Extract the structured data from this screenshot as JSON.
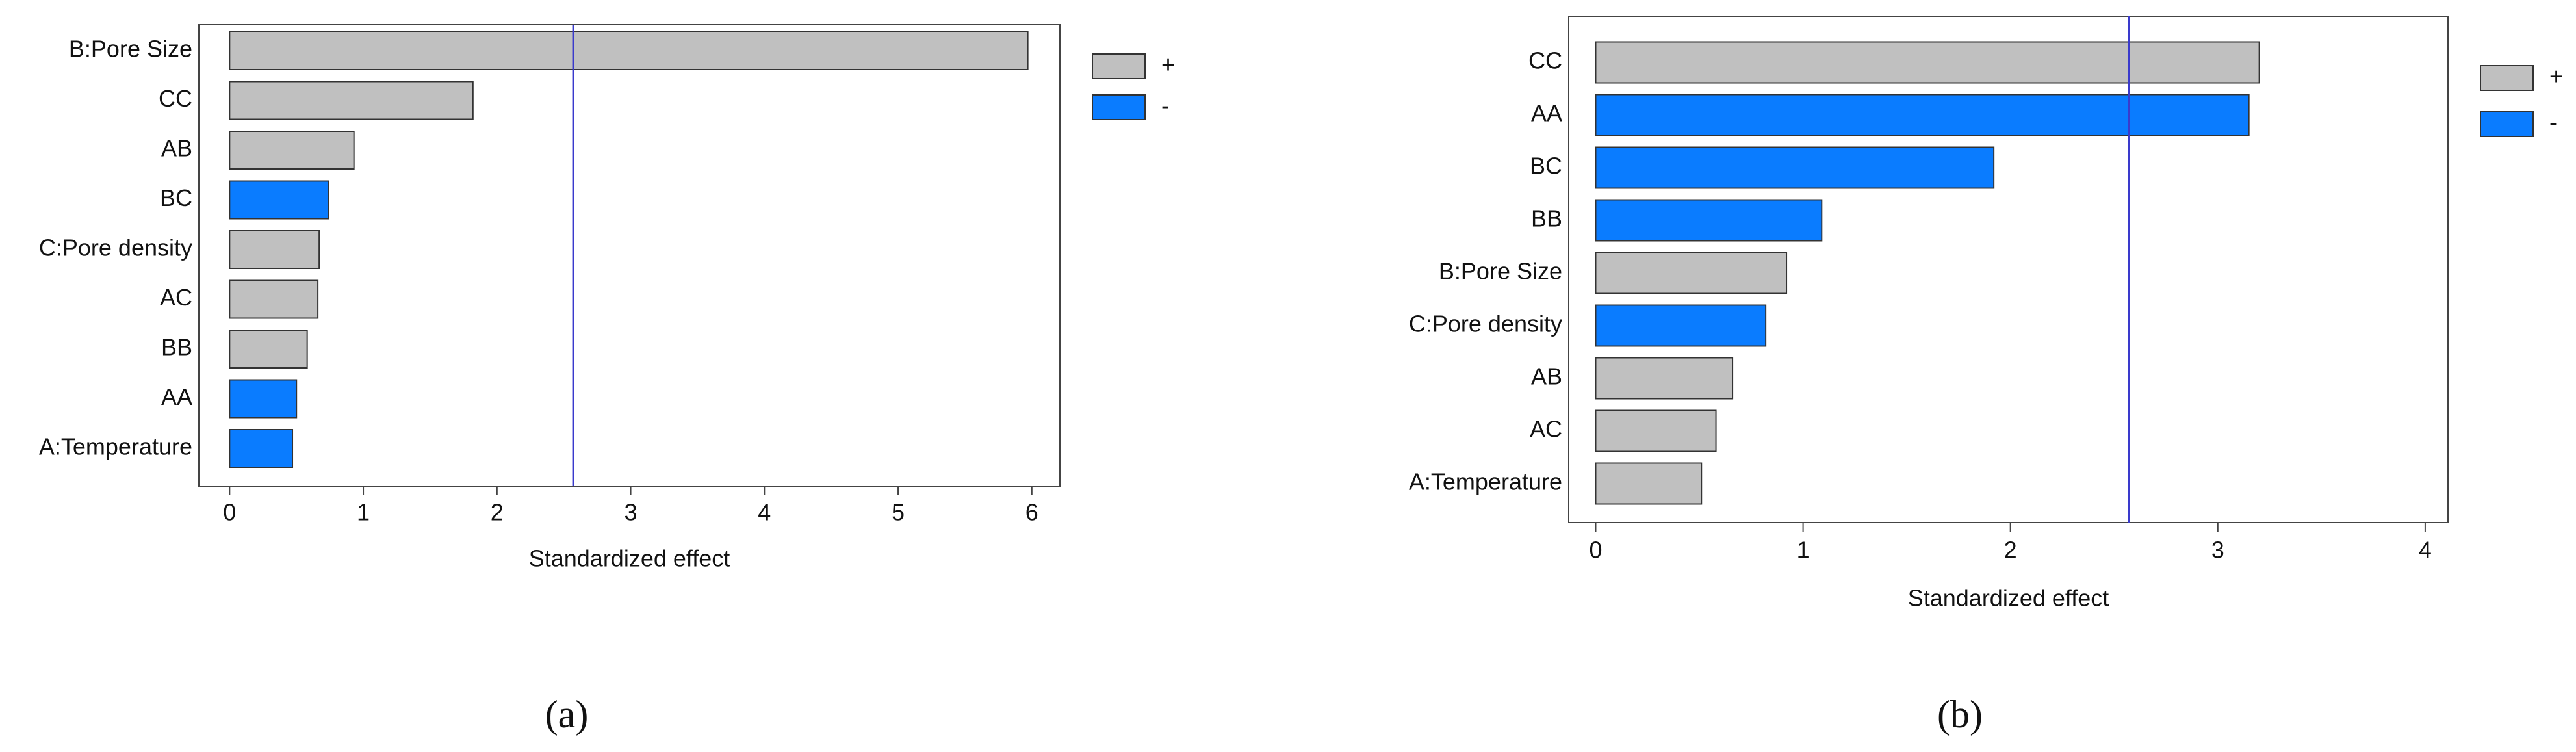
{
  "chart_data": [
    {
      "type": "bar",
      "orientation": "horizontal",
      "caption": "(a)",
      "xlabel": "Standardized effect",
      "categories": [
        "B:Pore Size",
        "CC",
        "AB",
        "BC",
        "C:Pore density",
        "AC",
        "BB",
        "AA",
        "A:Temperature"
      ],
      "series": [
        {
          "name": "+",
          "color": "#c0c0c0",
          "values": [
            5.97,
            1.82,
            0.93,
            null,
            0.67,
            0.66,
            0.58,
            null,
            null
          ]
        },
        {
          "name": "-",
          "color": "#0a7cff",
          "values": [
            null,
            null,
            null,
            0.74,
            null,
            null,
            null,
            0.5,
            0.47
          ]
        }
      ],
      "xlim": [
        -0.23,
        6.21
      ],
      "xticks": [
        0,
        1,
        2,
        3,
        4,
        5,
        6
      ],
      "reference_line": 2.57,
      "reference_line_color": "#3a3acc",
      "legend": "outside-upper-right"
    },
    {
      "type": "bar",
      "orientation": "horizontal",
      "caption": "(b)",
      "xlabel": "Standardized effect",
      "categories": [
        "CC",
        "AA",
        "BC",
        "BB",
        "B:Pore Size",
        "C:Pore density",
        "AB",
        "AC",
        "A:Temperature"
      ],
      "series": [
        {
          "name": "+",
          "color": "#c0c0c0",
          "values": [
            3.2,
            null,
            null,
            null,
            0.92,
            null,
            0.66,
            0.58,
            0.51
          ]
        },
        {
          "name": "-",
          "color": "#0a7cff",
          "values": [
            null,
            3.15,
            1.92,
            1.09,
            null,
            0.82,
            null,
            null,
            null
          ]
        }
      ],
      "xlim": [
        -0.13,
        4.11
      ],
      "xticks": [
        0,
        1,
        2,
        3,
        4
      ],
      "reference_line": 2.57,
      "reference_line_color": "#3a3acc",
      "legend": "outside-upper-right"
    }
  ]
}
